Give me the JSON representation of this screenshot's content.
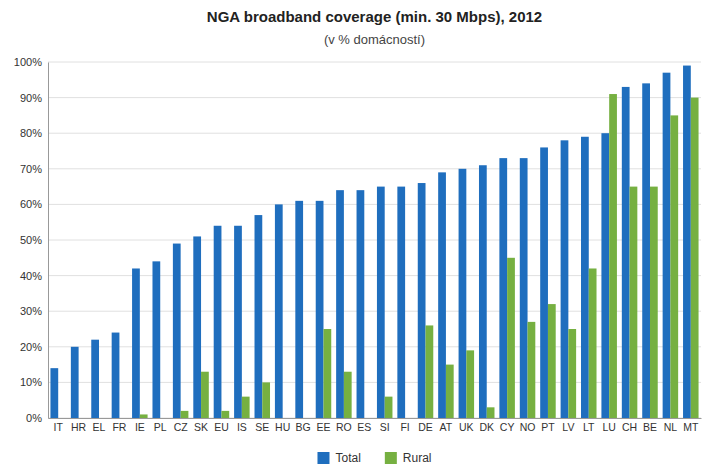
{
  "chart_data": {
    "type": "bar",
    "title": "NGA broadband coverage (min. 30 Mbps), 2012",
    "subtitle": "(v % domácností)",
    "categories": [
      "IT",
      "HR",
      "EL",
      "FR",
      "IE",
      "PL",
      "CZ",
      "SK",
      "EU",
      "IS",
      "SE",
      "HU",
      "BG",
      "EE",
      "RO",
      "ES",
      "SI",
      "FI",
      "DE",
      "AT",
      "UK",
      "DK",
      "CY",
      "NO",
      "PT",
      "LV",
      "LT",
      "LU",
      "CH",
      "BE",
      "NL",
      "MT"
    ],
    "series": [
      {
        "name": "Total",
        "color": "#1F6EBE",
        "values": [
          14,
          20,
          22,
          24,
          42,
          44,
          49,
          51,
          54,
          54,
          57,
          60,
          61,
          61,
          64,
          64,
          65,
          65,
          66,
          69,
          70,
          71,
          73,
          73,
          76,
          78,
          79,
          80,
          93,
          94,
          97,
          99
        ]
      },
      {
        "name": "Rural",
        "color": "#76B041",
        "values": [
          0,
          0,
          0,
          0,
          1,
          0,
          2,
          13,
          2,
          6,
          10,
          0,
          0,
          25,
          13,
          0,
          6,
          0,
          26,
          15,
          19,
          3,
          45,
          27,
          32,
          25,
          42,
          91,
          65,
          65,
          85,
          90
        ]
      }
    ],
    "ylim": [
      0,
      100
    ],
    "yticks": [
      {
        "value": 0,
        "label": "0%"
      },
      {
        "value": 10,
        "label": "10%"
      },
      {
        "value": 20,
        "label": "20%"
      },
      {
        "value": 30,
        "label": "30%"
      },
      {
        "value": 40,
        "label": "40%"
      },
      {
        "value": 50,
        "label": "50%"
      },
      {
        "value": 60,
        "label": "60%"
      },
      {
        "value": 70,
        "label": "70%"
      },
      {
        "value": 80,
        "label": "80%"
      },
      {
        "value": 90,
        "label": "90%"
      },
      {
        "value": 100,
        "label": "100%"
      }
    ],
    "grid": true,
    "legend": "bottom"
  }
}
